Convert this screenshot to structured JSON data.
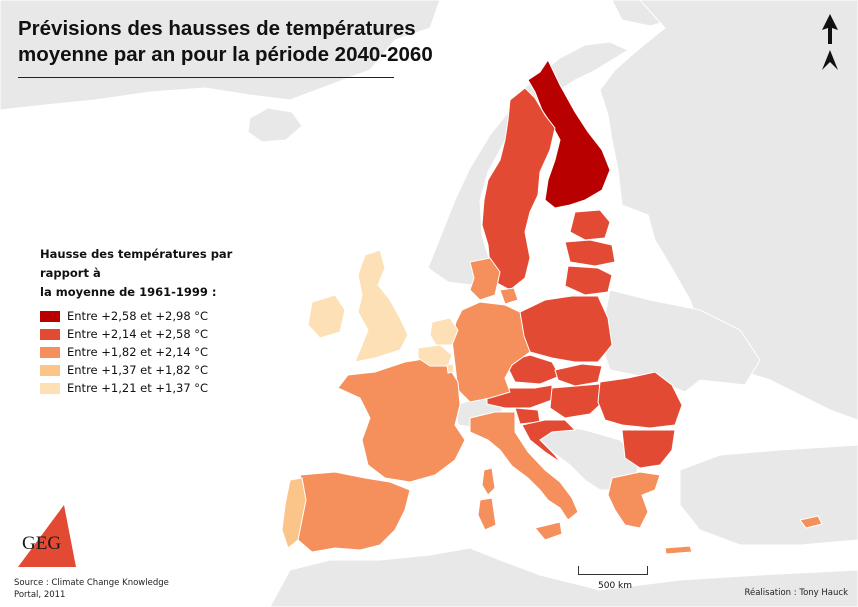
{
  "title": {
    "line1": "Prévisions des hausses de températures",
    "line2": "moyenne par an pour la période 2040-2060"
  },
  "legend": {
    "title_line1": "Hausse des températures par rapport à",
    "title_line2": "la moyenne de 1961-1999 :",
    "classes": [
      {
        "label": "Entre +2,58 et +2,98 °C",
        "color": "#b80000"
      },
      {
        "label": "Entre +2,14 et +2,58 °C",
        "color": "#e34a33"
      },
      {
        "label": "Entre +1,82 et +2,14 °C",
        "color": "#f58f5b"
      },
      {
        "label": "Entre +1,37 et +1,82 °C",
        "color": "#fbc58a"
      },
      {
        "label": "Entre +1,21 et +1,37 °C",
        "color": "#fde0b6"
      }
    ]
  },
  "colors": {
    "background_land": "#e8e8e8",
    "sea": "#ffffff",
    "border": "#ffffff"
  },
  "source": "Source : Climate Change Knowledge Portal, 2011",
  "credit": "Réalisation : Tony Hauck",
  "scale_label": "500 km",
  "logo_text": "GEG",
  "north_icon": "north-arrow-icon",
  "regions": [
    {
      "name": "Finland",
      "class": 0
    },
    {
      "name": "Sweden",
      "class": 1
    },
    {
      "name": "Estonia",
      "class": 1
    },
    {
      "name": "Latvia",
      "class": 1
    },
    {
      "name": "Lithuania",
      "class": 1
    },
    {
      "name": "Poland",
      "class": 1
    },
    {
      "name": "Czech Republic",
      "class": 1
    },
    {
      "name": "Slovakia",
      "class": 1
    },
    {
      "name": "Hungary",
      "class": 1
    },
    {
      "name": "Austria",
      "class": 1
    },
    {
      "name": "Slovenia",
      "class": 1
    },
    {
      "name": "Croatia",
      "class": 1
    },
    {
      "name": "Romania",
      "class": 1
    },
    {
      "name": "Bulgaria",
      "class": 1
    },
    {
      "name": "Denmark",
      "class": 2
    },
    {
      "name": "Germany",
      "class": 2
    },
    {
      "name": "France",
      "class": 2
    },
    {
      "name": "Spain",
      "class": 2
    },
    {
      "name": "Italy",
      "class": 2
    },
    {
      "name": "Greece",
      "class": 2
    },
    {
      "name": "Cyprus",
      "class": 2
    },
    {
      "name": "Portugal",
      "class": 3
    },
    {
      "name": "Belgium",
      "class": 4
    },
    {
      "name": "Netherlands",
      "class": 4
    },
    {
      "name": "Luxembourg",
      "class": 4
    },
    {
      "name": "United Kingdom",
      "class": 4
    },
    {
      "name": "Ireland",
      "class": 4
    }
  ]
}
